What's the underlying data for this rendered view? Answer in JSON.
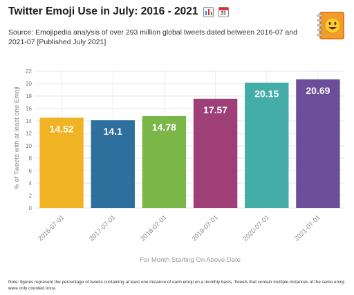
{
  "header": {
    "title": "Twitter Emoji Use in July: 2016 - 2021",
    "subtitle": "Source: Emojipedia analysis of over 293 million global tweets dated between 2016-07 and 2021-07 [Published July 2021]",
    "title_icons": [
      "bar-chart-icon",
      "calendar-icon"
    ],
    "calendar_day": "31",
    "logo_icon": "emojipedia-book-icon"
  },
  "chart_data": {
    "type": "bar",
    "categories": [
      "2016-07-01",
      "2017-07-01",
      "2018-07-01",
      "2019-07-01",
      "2020-07-01",
      "2021-07-01"
    ],
    "values": [
      14.52,
      14.1,
      14.78,
      17.57,
      20.15,
      20.69
    ],
    "value_labels": [
      "14.52",
      "14.1",
      "14.78",
      "17.57",
      "20.15",
      "20.69"
    ],
    "colors": [
      "#f0b323",
      "#2e6f9e",
      "#7ab648",
      "#9e3f77",
      "#45ada8",
      "#6b4d9a"
    ],
    "xlabel": "For Month Starting On Above Date",
    "ylabel": "% of Tweets with at least one Emoji",
    "ylim": [
      0,
      22
    ],
    "yticks": [
      0,
      2,
      4,
      6,
      8,
      10,
      12,
      14,
      16,
      18,
      20,
      22
    ],
    "grid": true
  },
  "footer": {
    "note": "Note: figures represent the percentage of tweets containing at least one instance of each emoji on a monthly basis. Tweets that contain multiple instances of the same emoji were only counted once."
  }
}
